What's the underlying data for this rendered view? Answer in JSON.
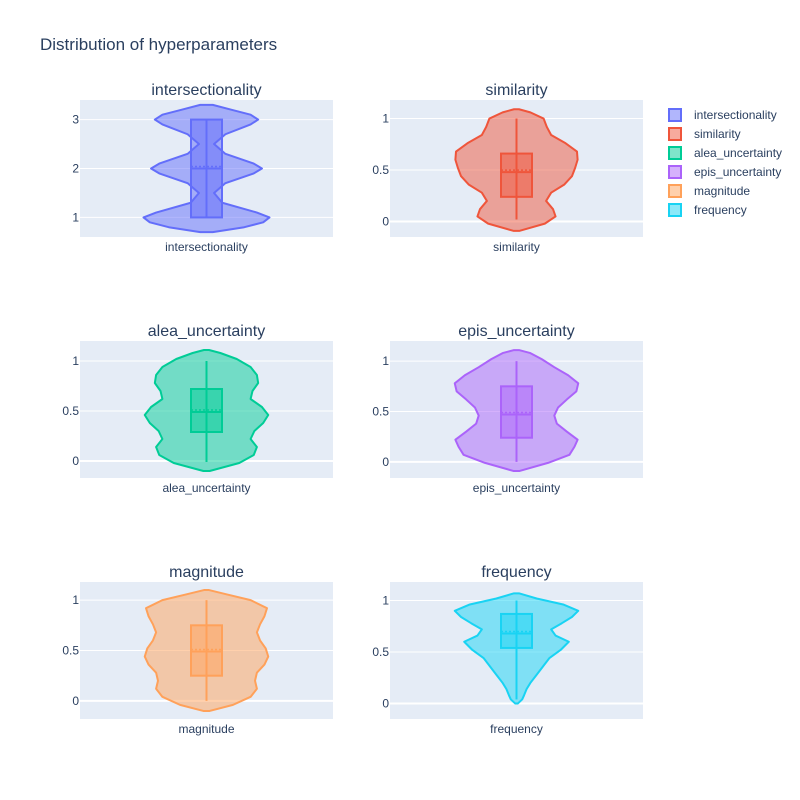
{
  "title": "Distribution of hyperparameters",
  "colors": {
    "intersectionality": "#636efa",
    "similarity": "#ef553b",
    "alea_uncertainty": "#00cc96",
    "epis_uncertainty": "#ab63fa",
    "magnitude": "#ffa15a",
    "frequency": "#19d3f3"
  },
  "chart_data": [
    {
      "type": "violin",
      "title": "intersectionality",
      "series": "intersectionality",
      "xlabel": "intersectionality",
      "ylim": [
        0.6,
        3.4
      ],
      "yticks": [
        1,
        2,
        3
      ],
      "box": {
        "q1": 1,
        "median": 2,
        "q3": 3,
        "mean": 2.0,
        "lower_whisker": 1,
        "upper_whisker": 3
      },
      "kde_y": [
        0.7,
        0.8,
        0.9,
        1.0,
        1.1,
        1.3,
        1.5,
        1.7,
        1.9,
        2.0,
        2.1,
        2.3,
        2.5,
        2.7,
        2.9,
        3.0,
        3.1,
        3.2,
        3.3
      ],
      "kde_w": [
        0.1,
        0.6,
        0.9,
        1.0,
        0.8,
        0.25,
        0.12,
        0.3,
        0.75,
        0.88,
        0.75,
        0.3,
        0.12,
        0.3,
        0.7,
        0.82,
        0.7,
        0.4,
        0.1
      ]
    },
    {
      "type": "violin",
      "title": "similarity",
      "series": "similarity",
      "xlabel": "similarity",
      "ylim": [
        -0.15,
        1.18
      ],
      "yticks": [
        0,
        0.5,
        1
      ],
      "box": {
        "q1": 0.24,
        "median": 0.48,
        "q3": 0.66,
        "mean": 0.48,
        "lower_whisker": 0.02,
        "upper_whisker": 1.0
      },
      "kde_y": [
        -0.09,
        -0.02,
        0.05,
        0.12,
        0.2,
        0.28,
        0.36,
        0.44,
        0.52,
        0.6,
        0.68,
        0.76,
        0.84,
        0.92,
        1.0,
        1.06,
        1.09
      ],
      "kde_w": [
        0.05,
        0.45,
        0.62,
        0.58,
        0.47,
        0.55,
        0.76,
        0.88,
        0.93,
        0.97,
        0.96,
        0.78,
        0.55,
        0.48,
        0.43,
        0.22,
        0.04
      ]
    },
    {
      "type": "violin",
      "title": "alea_uncertainty",
      "series": "alea_uncertainty",
      "xlabel": "alea_uncertainty",
      "ylim": [
        -0.17,
        1.2
      ],
      "yticks": [
        0,
        0.5,
        1
      ],
      "box": {
        "q1": 0.29,
        "median": 0.49,
        "q3": 0.72,
        "mean": 0.49,
        "lower_whisker": -0.01,
        "upper_whisker": 1.0
      },
      "kde_y": [
        -0.1,
        -0.02,
        0.06,
        0.14,
        0.22,
        0.3,
        0.38,
        0.46,
        0.54,
        0.62,
        0.7,
        0.78,
        0.86,
        0.94,
        1.02,
        1.08,
        1.11
      ],
      "kde_w": [
        0.05,
        0.52,
        0.75,
        0.8,
        0.7,
        0.76,
        0.9,
        0.98,
        0.88,
        0.7,
        0.73,
        0.82,
        0.8,
        0.7,
        0.48,
        0.22,
        0.04
      ]
    },
    {
      "type": "violin",
      "title": "epis_uncertainty",
      "series": "epis_uncertainty",
      "xlabel": "epis_uncertainty",
      "ylim": [
        -0.16,
        1.2
      ],
      "yticks": [
        0,
        0.5,
        1
      ],
      "box": {
        "q1": 0.24,
        "median": 0.47,
        "q3": 0.75,
        "mean": 0.47,
        "lower_whisker": 0.0,
        "upper_whisker": 1.0
      },
      "kde_y": [
        -0.09,
        -0.01,
        0.07,
        0.15,
        0.22,
        0.3,
        0.38,
        0.46,
        0.54,
        0.62,
        0.7,
        0.78,
        0.86,
        0.94,
        1.02,
        1.08,
        1.11
      ],
      "kde_w": [
        0.05,
        0.5,
        0.84,
        0.92,
        0.97,
        0.8,
        0.64,
        0.6,
        0.66,
        0.8,
        0.95,
        0.98,
        0.82,
        0.6,
        0.4,
        0.22,
        0.04
      ]
    },
    {
      "type": "violin",
      "title": "magnitude",
      "series": "magnitude",
      "xlabel": "magnitude",
      "ylim": [
        -0.18,
        1.18
      ],
      "yticks": [
        0,
        0.5,
        1
      ],
      "box": {
        "q1": 0.25,
        "median": 0.49,
        "q3": 0.75,
        "mean": 0.49,
        "lower_whisker": 0.0,
        "upper_whisker": 1.0
      },
      "kde_y": [
        -0.1,
        -0.04,
        0.04,
        0.12,
        0.2,
        0.28,
        0.36,
        0.44,
        0.52,
        0.6,
        0.68,
        0.76,
        0.84,
        0.92,
        1.0,
        1.06,
        1.1
      ],
      "kde_w": [
        0.05,
        0.42,
        0.7,
        0.8,
        0.77,
        0.8,
        0.92,
        0.98,
        0.94,
        0.85,
        0.8,
        0.85,
        0.92,
        0.96,
        0.7,
        0.3,
        0.04
      ]
    },
    {
      "type": "violin",
      "title": "frequency",
      "series": "frequency",
      "xlabel": "frequency",
      "ylim": [
        -0.15,
        1.18
      ],
      "yticks": [
        0,
        0.5,
        1
      ],
      "box": {
        "q1": 0.54,
        "median": 0.68,
        "q3": 0.87,
        "mean": 0.68,
        "lower_whisker": 0.04,
        "upper_whisker": 1.0
      },
      "kde_y": [
        0.0,
        0.04,
        0.08,
        0.14,
        0.2,
        0.28,
        0.36,
        0.44,
        0.52,
        0.6,
        0.66,
        0.72,
        0.78,
        0.84,
        0.9,
        0.96,
        1.02,
        1.07
      ],
      "kde_w": [
        0.02,
        0.09,
        0.12,
        0.16,
        0.22,
        0.32,
        0.42,
        0.52,
        0.7,
        0.83,
        0.62,
        0.55,
        0.72,
        0.88,
        0.98,
        0.75,
        0.32,
        0.04
      ]
    }
  ],
  "legend": {
    "placement": "top-right",
    "items": [
      "intersectionality",
      "similarity",
      "alea_uncertainty",
      "epis_uncertainty",
      "magnitude",
      "frequency"
    ]
  }
}
